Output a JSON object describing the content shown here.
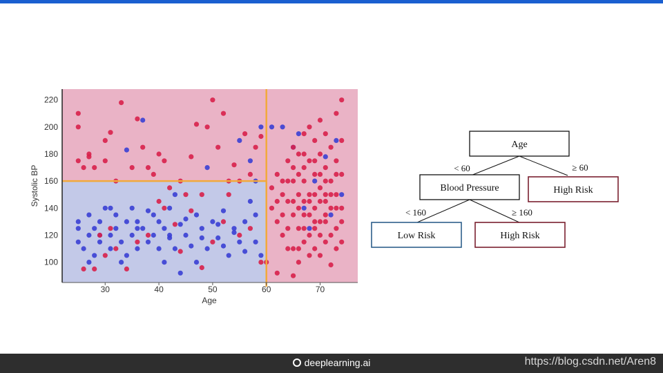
{
  "chart_data": {
    "type": "scatter",
    "xlabel": "Age",
    "ylabel": "Systolic BP",
    "xlim": [
      22,
      77
    ],
    "ylim": [
      85,
      228
    ],
    "x_ticks": [
      30,
      40,
      50,
      60,
      70
    ],
    "y_ticks": [
      100,
      120,
      140,
      160,
      180,
      200,
      220
    ],
    "grid": false,
    "regions": [
      {
        "label": "Low Risk",
        "color": "#c3c9e8",
        "x_range": [
          22,
          60
        ],
        "y_range": [
          85,
          160
        ]
      },
      {
        "label": "High Risk",
        "color": "#eab3c6",
        "x_range": [
          22,
          60
        ],
        "y_range": [
          160,
          228
        ]
      },
      {
        "label": "High Risk",
        "color": "#eab3c6",
        "x_range": [
          60,
          77
        ],
        "y_range": [
          85,
          228
        ]
      }
    ],
    "split_lines": [
      {
        "orientation": "vertical",
        "x": 60,
        "color": "#f2a93b"
      },
      {
        "orientation": "horizontal",
        "y": 160,
        "x_range": [
          22,
          60
        ],
        "color": "#f2a93b"
      }
    ],
    "series": [
      {
        "color": "#3a3fd4",
        "points": [
          [
            25,
            115
          ],
          [
            25,
            125
          ],
          [
            25,
            130
          ],
          [
            26,
            110
          ],
          [
            27,
            120
          ],
          [
            27,
            135
          ],
          [
            28,
            105
          ],
          [
            28,
            125
          ],
          [
            29,
            115
          ],
          [
            29,
            130
          ],
          [
            30,
            140
          ],
          [
            31,
            120
          ],
          [
            31,
            110
          ],
          [
            32,
            125
          ],
          [
            32,
            135
          ],
          [
            33,
            115
          ],
          [
            34,
            105
          ],
          [
            34,
            130
          ],
          [
            35,
            120
          ],
          [
            35,
            140
          ],
          [
            36,
            110
          ],
          [
            36,
            130
          ],
          [
            37,
            125
          ],
          [
            37,
            205
          ],
          [
            38,
            115
          ],
          [
            38,
            138
          ],
          [
            39,
            120
          ],
          [
            40,
            110
          ],
          [
            40,
            130
          ],
          [
            41,
            100
          ],
          [
            41,
            125
          ],
          [
            42,
            118
          ],
          [
            42,
            140
          ],
          [
            43,
            110
          ],
          [
            44,
            92
          ],
          [
            44,
            128
          ],
          [
            45,
            120
          ],
          [
            46,
            112
          ],
          [
            47,
            135
          ],
          [
            47,
            100
          ],
          [
            48,
            125
          ],
          [
            49,
            110
          ],
          [
            49,
            170
          ],
          [
            50,
            130
          ],
          [
            51,
            118
          ],
          [
            52,
            138
          ],
          [
            53,
            105
          ],
          [
            54,
            125
          ],
          [
            55,
            115
          ],
          [
            55,
            190
          ],
          [
            56,
            130
          ],
          [
            57,
            145
          ],
          [
            57,
            175
          ],
          [
            58,
            115
          ],
          [
            58,
            135
          ],
          [
            59,
            105
          ],
          [
            59,
            200
          ],
          [
            61,
            200
          ],
          [
            63,
            200
          ],
          [
            65,
            185
          ],
          [
            66,
            195
          ],
          [
            67,
            140
          ],
          [
            68,
            125
          ],
          [
            69,
            160
          ],
          [
            71,
            178
          ],
          [
            72,
            135
          ],
          [
            73,
            190
          ],
          [
            74,
            150
          ],
          [
            34,
            183
          ],
          [
            29,
            120
          ],
          [
            31,
            140
          ],
          [
            33,
            100
          ],
          [
            36,
            125
          ],
          [
            39,
            135
          ],
          [
            42,
            120
          ],
          [
            45,
            132
          ],
          [
            48,
            118
          ],
          [
            51,
            128
          ],
          [
            54,
            122
          ],
          [
            56,
            108
          ],
          [
            58,
            160
          ],
          [
            27,
            100
          ],
          [
            43,
            150
          ],
          [
            52,
            112
          ]
        ]
      },
      {
        "color": "#d8204a",
        "points": [
          [
            25,
            210
          ],
          [
            25,
            200
          ],
          [
            25,
            175
          ],
          [
            26,
            170
          ],
          [
            27,
            180
          ],
          [
            27,
            178
          ],
          [
            28,
            170
          ],
          [
            29,
            120
          ],
          [
            30,
            190
          ],
          [
            30,
            175
          ],
          [
            31,
            196
          ],
          [
            32,
            160
          ],
          [
            33,
            218
          ],
          [
            35,
            170
          ],
          [
            36,
            206
          ],
          [
            37,
            185
          ],
          [
            38,
            170
          ],
          [
            39,
            165
          ],
          [
            40,
            180
          ],
          [
            41,
            175
          ],
          [
            42,
            155
          ],
          [
            44,
            160
          ],
          [
            45,
            150
          ],
          [
            46,
            178
          ],
          [
            47,
            202
          ],
          [
            48,
            150
          ],
          [
            49,
            200
          ],
          [
            50,
            220
          ],
          [
            51,
            185
          ],
          [
            52,
            210
          ],
          [
            53,
            160
          ],
          [
            54,
            172
          ],
          [
            55,
            160
          ],
          [
            56,
            195
          ],
          [
            57,
            165
          ],
          [
            58,
            185
          ],
          [
            59,
            100
          ],
          [
            59,
            193
          ],
          [
            60,
            100
          ],
          [
            28,
            95
          ],
          [
            30,
            105
          ],
          [
            32,
            110
          ],
          [
            34,
            95
          ],
          [
            38,
            120
          ],
          [
            41,
            140
          ],
          [
            43,
            128
          ],
          [
            46,
            138
          ],
          [
            50,
            115
          ],
          [
            53,
            150
          ],
          [
            55,
            120
          ],
          [
            57,
            125
          ],
          [
            26,
            95
          ],
          [
            31,
            125
          ],
          [
            36,
            115
          ],
          [
            40,
            145
          ],
          [
            44,
            108
          ],
          [
            48,
            96
          ],
          [
            52,
            130
          ],
          [
            62,
            165
          ],
          [
            62,
            130
          ],
          [
            62,
            92
          ],
          [
            63,
            150
          ],
          [
            63,
            120
          ],
          [
            64,
            175
          ],
          [
            64,
            145
          ],
          [
            64,
            110
          ],
          [
            65,
            185
          ],
          [
            65,
            160
          ],
          [
            65,
            135
          ],
          [
            65,
            90
          ],
          [
            66,
            180
          ],
          [
            66,
            150
          ],
          [
            66,
            125
          ],
          [
            66,
            100
          ],
          [
            67,
            195
          ],
          [
            67,
            170
          ],
          [
            67,
            145
          ],
          [
            67,
            115
          ],
          [
            68,
            200
          ],
          [
            68,
            175
          ],
          [
            68,
            150
          ],
          [
            68,
            120
          ],
          [
            68,
            105
          ],
          [
            69,
            190
          ],
          [
            69,
            165
          ],
          [
            69,
            140
          ],
          [
            69,
            110
          ],
          [
            70,
            205
          ],
          [
            70,
            180
          ],
          [
            70,
            155
          ],
          [
            70,
            130
          ],
          [
            70,
            105
          ],
          [
            71,
            195
          ],
          [
            71,
            170
          ],
          [
            71,
            145
          ],
          [
            71,
            115
          ],
          [
            72,
            185
          ],
          [
            72,
            160
          ],
          [
            72,
            140
          ],
          [
            72,
            120
          ],
          [
            73,
            210
          ],
          [
            73,
            175
          ],
          [
            73,
            150
          ],
          [
            73,
            125
          ],
          [
            74,
            220
          ],
          [
            74,
            190
          ],
          [
            74,
            165
          ],
          [
            74,
            140
          ],
          [
            74,
            115
          ],
          [
            61,
            140
          ],
          [
            63,
            160
          ],
          [
            66,
            165
          ],
          [
            67,
            135
          ],
          [
            69,
            130
          ],
          [
            71,
            150
          ],
          [
            72,
            98
          ],
          [
            65,
            110
          ],
          [
            68,
            135
          ],
          [
            70,
            120
          ],
          [
            73,
            165
          ],
          [
            64,
            125
          ],
          [
            66,
            140
          ],
          [
            69,
            175
          ],
          [
            71,
            130
          ],
          [
            67,
            125
          ],
          [
            65,
            145
          ],
          [
            70,
            165
          ],
          [
            62,
            145
          ],
          [
            63,
            135
          ],
          [
            64,
            160
          ],
          [
            66,
            110
          ],
          [
            67,
            160
          ],
          [
            68,
            145
          ],
          [
            69,
            125
          ],
          [
            70,
            145
          ],
          [
            71,
            160
          ],
          [
            72,
            150
          ],
          [
            73,
            140
          ],
          [
            74,
            130
          ],
          [
            61,
            155
          ],
          [
            65,
            170
          ],
          [
            67,
            180
          ],
          [
            69,
            150
          ],
          [
            71,
            135
          ],
          [
            73,
            110
          ]
        ]
      }
    ]
  },
  "tree": {
    "root": "Age",
    "left_edge": "< 60",
    "right_edge": "≥ 60",
    "left_node": "Blood Pressure",
    "right_node": "High Risk",
    "ll_edge": "< 160",
    "lr_edge": "≥ 160",
    "ll_node": "Low Risk",
    "lr_node": "High Risk",
    "colors": {
      "low": "#2e5f8a",
      "high": "#7a1f2f"
    }
  },
  "footer": {
    "brand": "deeplearning.ai",
    "brand_icon": "smiley-icon",
    "watermark": "https://blog.csdn.net/Aren8"
  }
}
